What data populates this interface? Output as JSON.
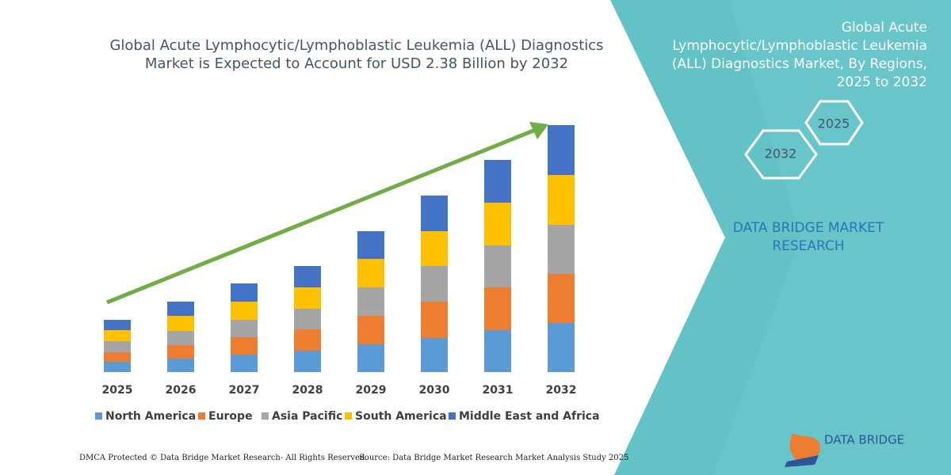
{
  "chart_data": {
    "type": "bar",
    "stacked": true,
    "title": "Global Acute Lymphocytic/Lymphoblastic Leukemia (ALL) Diagnostics Market is Expected to Account for USD 2.38 Billion by 2032",
    "categories": [
      "2025",
      "2026",
      "2027",
      "2028",
      "2029",
      "2030",
      "2031",
      "2032"
    ],
    "series": [
      {
        "name": "North America",
        "color": "#5b9bd5",
        "values": [
          13,
          17,
          22,
          27,
          35,
          43,
          53,
          62
        ]
      },
      {
        "name": "Europe",
        "color": "#ed7d31",
        "values": [
          12,
          17,
          22,
          27,
          36,
          46,
          54,
          62
        ]
      },
      {
        "name": "Asia Pacific",
        "color": "#a5a5a5",
        "values": [
          14,
          18,
          22,
          26,
          36,
          45,
          53,
          62
        ]
      },
      {
        "name": "South America",
        "color": "#ffc000",
        "values": [
          14,
          19,
          23,
          27,
          36,
          44,
          54,
          63
        ]
      },
      {
        "name": "Middle East and Africa",
        "color": "#4472c4",
        "values": [
          13,
          18,
          23,
          27,
          35,
          45,
          54,
          63
        ]
      }
    ],
    "ylim": [
      0,
      320
    ],
    "grid": false
  },
  "panel": {
    "title": "Global Acute Lymphocytic/Lymphoblastic Leukemia (ALL) Diagnostics Market, By Regions, 2025 to 2032",
    "hexagons": [
      "2025",
      "2032"
    ],
    "brand": "DATA BRIDGE MARKET RESEARCH",
    "logo": "DATA BRIDGE"
  },
  "footer": {
    "left": "DMCA Protected © Data Bridge Market Research- All Rights Reserved.",
    "right": "Source: Data Bridge Market Research Market Analysis Study 2025"
  }
}
